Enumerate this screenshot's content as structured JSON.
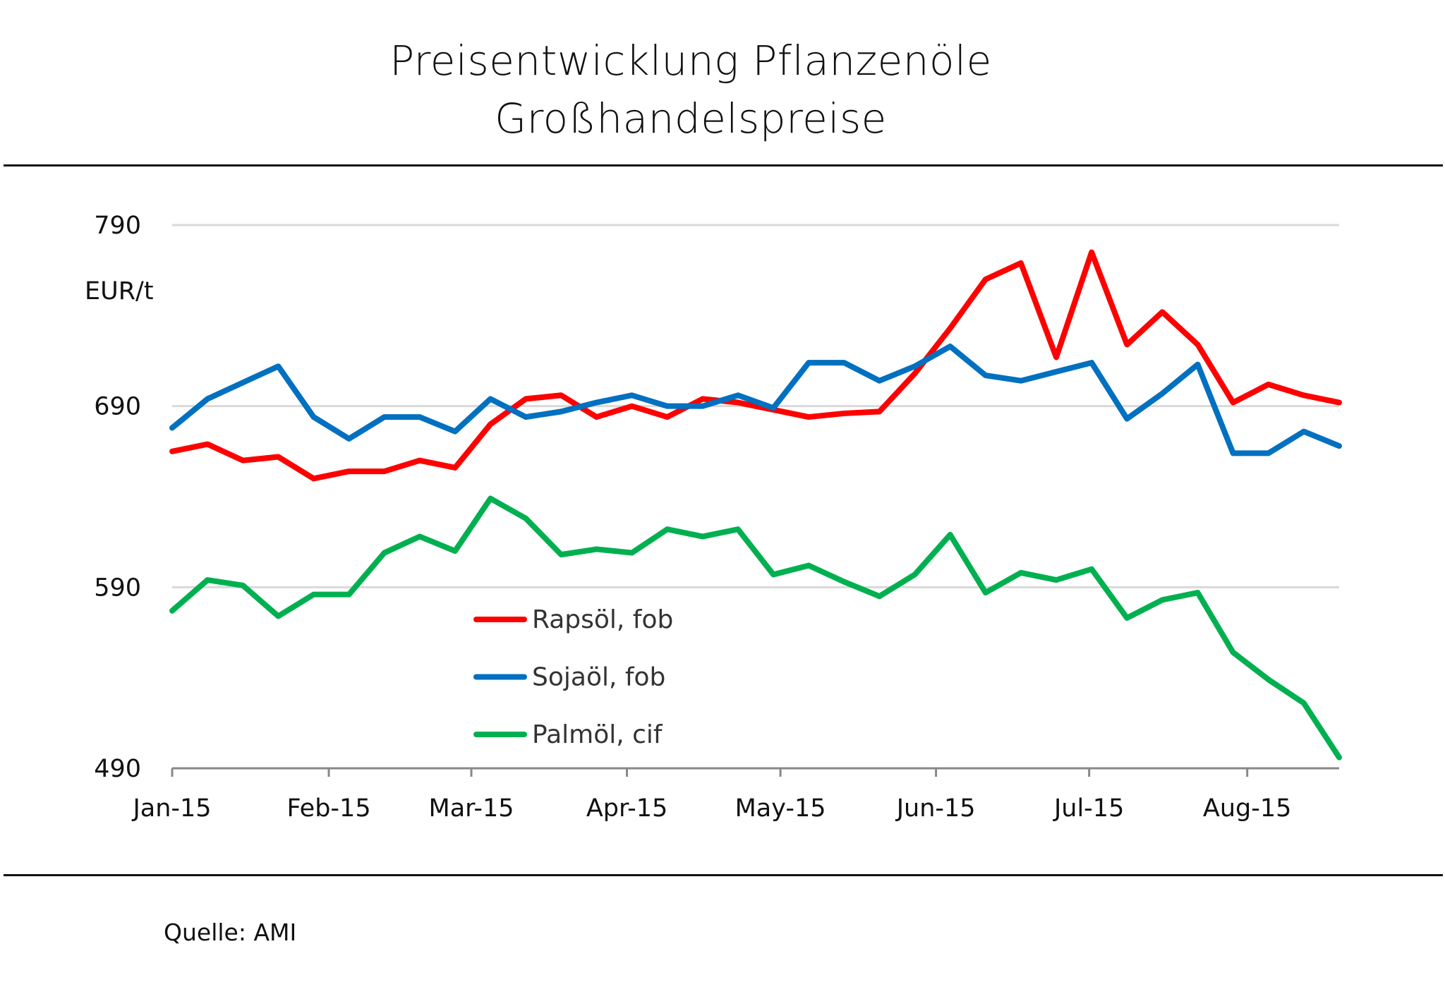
{
  "chart_data": {
    "type": "line",
    "title": "Preisentwicklung Pflanzenöle",
    "subtitle": "Großhandelspreise",
    "ylabel": "EUR/t",
    "xlabel": "",
    "ylim": [
      490,
      790
    ],
    "yticks": [
      790,
      690,
      590,
      490
    ],
    "grid": true,
    "x_range": [
      0,
      33
    ],
    "xticks": [
      {
        "label": "Jan-15",
        "x": 0
      },
      {
        "label": "Feb-15",
        "x": 4.43
      },
      {
        "label": "Mar-15",
        "x": 8.46
      },
      {
        "label": "Apr-15",
        "x": 12.86
      },
      {
        "label": "May-15",
        "x": 17.2
      },
      {
        "label": "Jun-15",
        "x": 21.6
      },
      {
        "label": "Jul-15",
        "x": 25.93
      },
      {
        "label": "Aug-15",
        "x": 30.4
      }
    ],
    "legend_position": "center-left",
    "series": [
      {
        "name": "Rapsöl, fob",
        "color": "#ff0000",
        "values": [
          665,
          669,
          660,
          662,
          650,
          654,
          654,
          660,
          656,
          680,
          694,
          696,
          684,
          690,
          684,
          694,
          692,
          688,
          684,
          686,
          687,
          708,
          733,
          760,
          769,
          717,
          775,
          724,
          742,
          724,
          692,
          702,
          696,
          692
        ]
      },
      {
        "name": "Sojaöl, fob",
        "color": "#0070c0",
        "values": [
          678,
          694,
          703,
          712,
          684,
          672,
          684,
          684,
          676,
          694,
          684,
          687,
          692,
          696,
          690,
          690,
          696,
          689,
          714,
          714,
          704,
          712,
          723,
          707,
          704,
          709,
          714,
          683,
          697,
          713,
          664,
          664,
          676,
          668
        ]
      },
      {
        "name": "Palmöl, cif",
        "color": "#00b050",
        "values": [
          577,
          594,
          591,
          574,
          586,
          586,
          609,
          618,
          610,
          639,
          628,
          608,
          611,
          609,
          622,
          618,
          622,
          597,
          602,
          593,
          585,
          597,
          619,
          587,
          598,
          594,
          600,
          573,
          583,
          587,
          554,
          539,
          526,
          496
        ]
      }
    ]
  },
  "source": "Quelle: AMI"
}
